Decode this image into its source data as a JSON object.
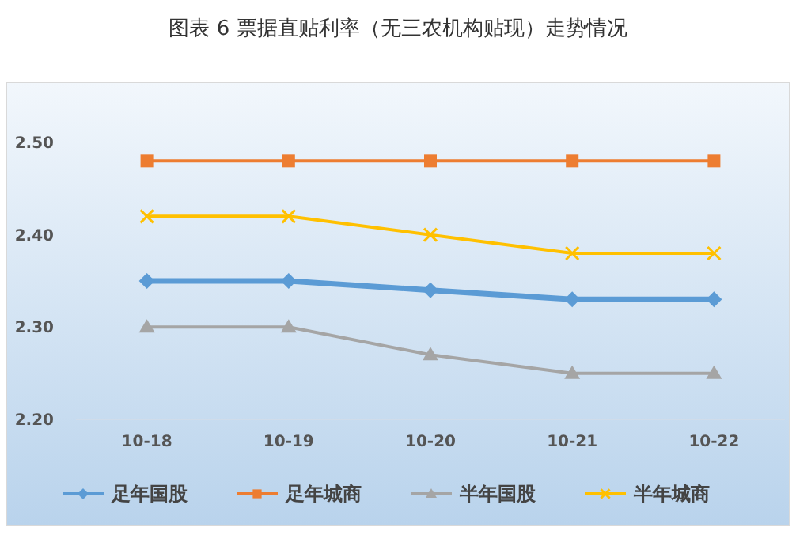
{
  "chart_data": {
    "type": "line",
    "title": "图表 6  票据直贴利率（无三农机构贴现）走势情况",
    "categories": [
      "10-18",
      "10-19",
      "10-20",
      "10-21",
      "10-22"
    ],
    "series": [
      {
        "name": "足年国股",
        "color": "#5b9bd5",
        "marker": "diamond",
        "values": [
          2.35,
          2.35,
          2.34,
          2.33,
          2.33
        ]
      },
      {
        "name": "足年城商",
        "color": "#ed7d31",
        "marker": "square",
        "values": [
          2.48,
          2.48,
          2.48,
          2.48,
          2.48
        ]
      },
      {
        "name": "半年国股",
        "color": "#a5a5a5",
        "marker": "triangle",
        "values": [
          2.3,
          2.3,
          2.27,
          2.25,
          2.25
        ]
      },
      {
        "name": "半年城商",
        "color": "#ffc000",
        "marker": "cross",
        "values": [
          2.42,
          2.42,
          2.4,
          2.38,
          2.38
        ]
      }
    ],
    "ylim": [
      2.2,
      2.5
    ],
    "yticks": [
      {
        "value": 2.2,
        "label": "2.20"
      },
      {
        "value": 2.3,
        "label": "2.30"
      },
      {
        "value": 2.4,
        "label": "2.40"
      },
      {
        "value": 2.5,
        "label": "2.50"
      }
    ],
    "grid": false,
    "legend": "bottom"
  }
}
